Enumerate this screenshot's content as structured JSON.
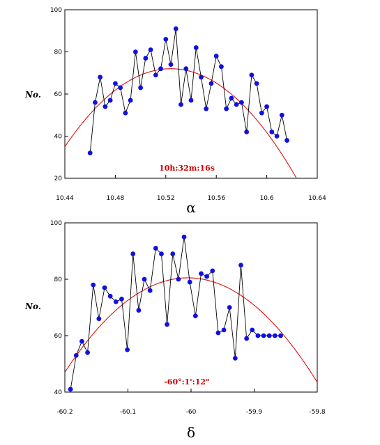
{
  "chart_data": [
    {
      "type": "scatter",
      "xlabel": "α",
      "ylabel": "No.",
      "annotation": "10h:32m:16s",
      "xlim": [
        10.44,
        10.64
      ],
      "ylim": [
        20,
        100
      ],
      "x_ticks": [
        "10.44",
        "10.48",
        "10.52",
        "10.56",
        "10.6",
        "10.64"
      ],
      "y_ticks": [
        "100",
        "80",
        "60",
        "40",
        "20"
      ],
      "colors": {
        "points": "#1010e0",
        "line": "#000000",
        "fit": "#e01010"
      },
      "series": [
        {
          "x": [
            10.46,
            10.464,
            10.468,
            10.472,
            10.476,
            10.48,
            10.484,
            10.488,
            10.492,
            10.496,
            10.5,
            10.504,
            10.508,
            10.512,
            10.516,
            10.52,
            10.524,
            10.528,
            10.532,
            10.536,
            10.54,
            10.544,
            10.548,
            10.552,
            10.556,
            10.56,
            10.564,
            10.568,
            10.572,
            10.576,
            10.58,
            10.584,
            10.588,
            10.592,
            10.596,
            10.6,
            10.604,
            10.608,
            10.612,
            10.616
          ],
          "y": [
            32,
            56,
            68,
            54,
            57,
            65,
            63,
            51,
            57,
            80,
            63,
            77,
            81,
            69,
            72,
            86,
            74,
            91,
            55,
            72,
            57,
            82,
            68,
            53,
            65,
            78,
            73,
            53,
            58,
            55,
            56,
            42,
            69,
            65,
            51,
            54,
            42,
            40,
            50,
            38
          ],
          "fit": {
            "peak_x": 10.524,
            "peak_y": 72,
            "edge_x": 10.44,
            "edge_y": 35
          }
        }
      ]
    },
    {
      "type": "scatter",
      "xlabel": "δ",
      "ylabel": "No.",
      "annotation": "-60°:1':12\"",
      "xlim": [
        -60.2,
        -59.8
      ],
      "ylim": [
        40,
        100
      ],
      "x_ticks": [
        "-60.2",
        "-60.1",
        "-60",
        "-59.9",
        "-59.8"
      ],
      "y_ticks": [
        "100",
        "80",
        "60",
        "40"
      ],
      "colors": {
        "points": "#1010e0",
        "line": "#000000",
        "fit": "#e01010"
      },
      "series": [
        {
          "x": [
            -60.191,
            -60.182,
            -60.173,
            -60.164,
            -60.155,
            -60.146,
            -60.137,
            -60.128,
            -60.119,
            -60.11,
            -60.101,
            -60.092,
            -60.083,
            -60.074,
            -60.065,
            -60.056,
            -60.047,
            -60.038,
            -60.029,
            -60.02,
            -60.011,
            -60.002,
            -59.993,
            -59.984,
            -59.975,
            -59.966,
            -59.957,
            -59.948,
            -59.939,
            -59.93,
            -59.921,
            -59.912,
            -59.903,
            -59.894,
            -59.885,
            -59.876,
            -59.867,
            -59.858
          ],
          "y": [
            41,
            53,
            58,
            54,
            78,
            66,
            77,
            74,
            72,
            73,
            55,
            89,
            69,
            80,
            76,
            91,
            89,
            64,
            89,
            80,
            95,
            79,
            67,
            82,
            81,
            83,
            61,
            62,
            70,
            52,
            85,
            59,
            62,
            60,
            60,
            60,
            60,
            60
          ],
          "fit": {
            "peak_x": -60.005,
            "peak_y": 80.5,
            "edge_x": -60.2,
            "edge_y": 47
          }
        }
      ]
    }
  ]
}
